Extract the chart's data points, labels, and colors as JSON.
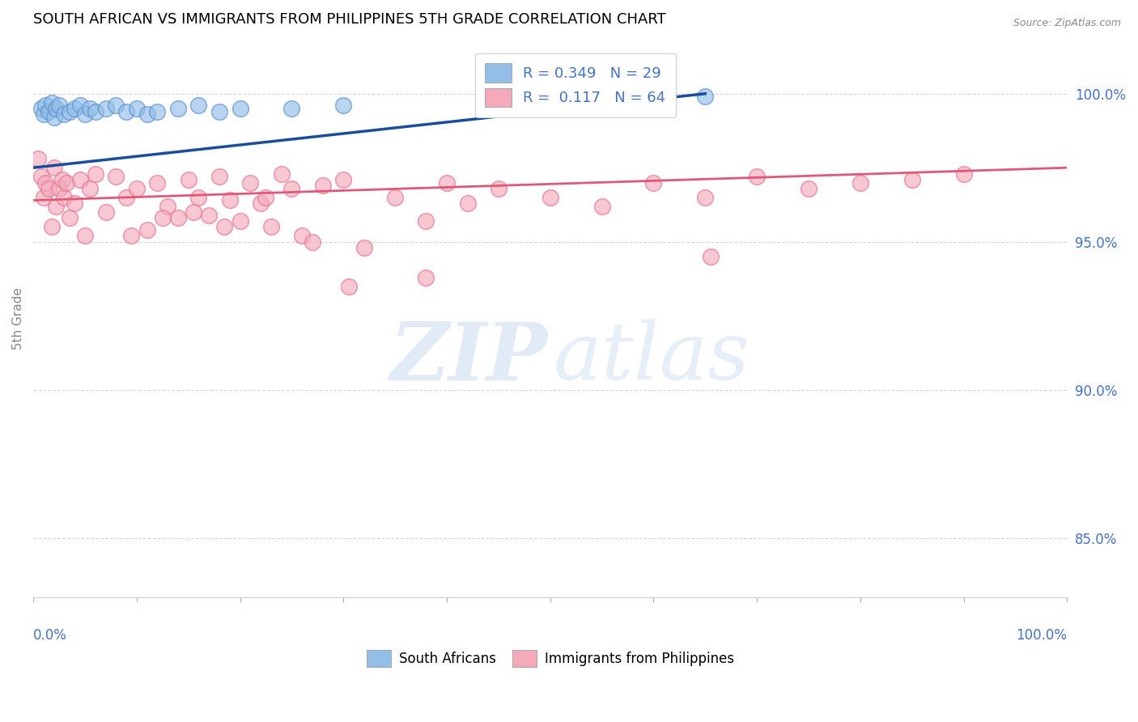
{
  "title": "SOUTH AFRICAN VS IMMIGRANTS FROM PHILIPPINES 5TH GRADE CORRELATION CHART",
  "source": "Source: ZipAtlas.com",
  "ylabel": "5th Grade",
  "yaxis_ticks": [
    85.0,
    90.0,
    95.0,
    100.0
  ],
  "xaxis_ticks": [
    0.0,
    10.0,
    20.0,
    30.0,
    40.0,
    50.0,
    60.0,
    70.0,
    80.0,
    90.0,
    100.0
  ],
  "xlim": [
    0.0,
    100.0
  ],
  "ylim": [
    83.0,
    101.8
  ],
  "blue_color": "#92BEE8",
  "pink_color": "#F4AABB",
  "blue_edge_color": "#5A90D0",
  "pink_edge_color": "#E87090",
  "blue_line_color": "#1A4D9A",
  "pink_line_color": "#E05878",
  "R_blue": 0.349,
  "N_blue": 29,
  "R_pink": 0.117,
  "N_pink": 64,
  "legend_label_blue": "South Africans",
  "legend_label_pink": "Immigrants from Philippines",
  "scatter_blue_x": [
    0.8,
    1.0,
    1.2,
    1.5,
    1.8,
    2.0,
    2.2,
    2.5,
    3.0,
    3.5,
    4.0,
    4.5,
    5.0,
    5.5,
    6.0,
    7.0,
    8.0,
    9.0,
    10.0,
    11.0,
    12.0,
    14.0,
    16.0,
    18.0,
    20.0,
    25.0,
    30.0,
    55.0,
    65.0
  ],
  "scatter_blue_y": [
    99.5,
    99.3,
    99.6,
    99.4,
    99.7,
    99.2,
    99.5,
    99.6,
    99.3,
    99.4,
    99.5,
    99.6,
    99.3,
    99.5,
    99.4,
    99.5,
    99.6,
    99.4,
    99.5,
    99.3,
    99.4,
    99.5,
    99.6,
    99.4,
    99.5,
    99.5,
    99.6,
    99.8,
    99.9
  ],
  "scatter_pink_x": [
    0.5,
    0.8,
    1.0,
    1.2,
    1.5,
    1.8,
    2.0,
    2.2,
    2.5,
    2.8,
    3.0,
    3.2,
    3.5,
    4.0,
    4.5,
    5.0,
    5.5,
    6.0,
    7.0,
    8.0,
    9.0,
    10.0,
    11.0,
    12.0,
    13.0,
    14.0,
    15.0,
    16.0,
    17.0,
    18.0,
    19.0,
    20.0,
    21.0,
    22.0,
    23.0,
    24.0,
    25.0,
    26.0,
    28.0,
    30.0,
    32.0,
    35.0,
    38.0,
    40.0,
    42.0,
    45.0,
    50.0,
    55.0,
    60.0,
    65.0,
    70.0,
    75.0,
    80.0,
    85.0,
    90.0,
    30.5,
    27.0,
    22.5,
    18.5,
    15.5,
    12.5,
    9.5,
    38.0,
    65.5
  ],
  "scatter_pink_y": [
    97.8,
    97.2,
    96.5,
    97.0,
    96.8,
    95.5,
    97.5,
    96.2,
    96.8,
    97.1,
    96.5,
    97.0,
    95.8,
    96.3,
    97.1,
    95.2,
    96.8,
    97.3,
    96.0,
    97.2,
    96.5,
    96.8,
    95.4,
    97.0,
    96.2,
    95.8,
    97.1,
    96.5,
    95.9,
    97.2,
    96.4,
    95.7,
    97.0,
    96.3,
    95.5,
    97.3,
    96.8,
    95.2,
    96.9,
    97.1,
    94.8,
    96.5,
    95.7,
    97.0,
    96.3,
    96.8,
    96.5,
    96.2,
    97.0,
    96.5,
    97.2,
    96.8,
    97.0,
    97.1,
    97.3,
    93.5,
    95.0,
    96.5,
    95.5,
    96.0,
    95.8,
    95.2,
    93.8,
    94.5
  ],
  "blue_trend_x": [
    0.0,
    65.0
  ],
  "blue_trend_y": [
    97.5,
    100.0
  ],
  "pink_trend_x": [
    0.0,
    100.0
  ],
  "pink_trend_y": [
    96.4,
    97.5
  ]
}
